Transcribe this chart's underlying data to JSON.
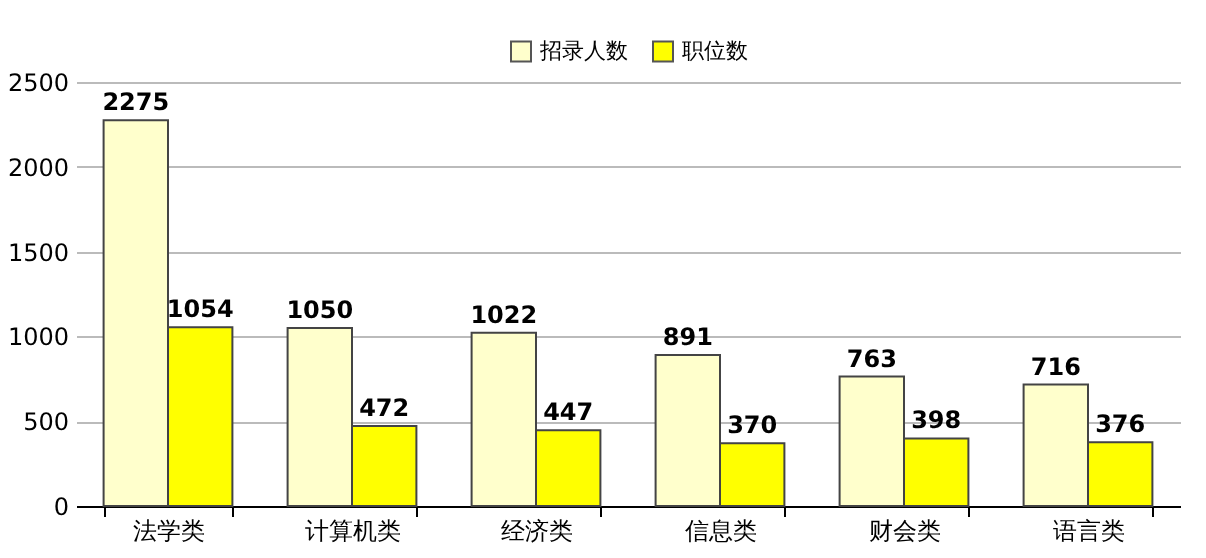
{
  "chart_data": {
    "type": "bar",
    "categories": [
      "法学类",
      "计算机类",
      "经济类",
      "信息类",
      "财会类",
      "语言类"
    ],
    "series": [
      {
        "name": "招录人数",
        "color": "#ffffcc",
        "values": [
          2275,
          1050,
          1022,
          891,
          763,
          716
        ]
      },
      {
        "name": "职位数",
        "color": "#ffff00",
        "values": [
          1054,
          472,
          447,
          370,
          398,
          376
        ]
      }
    ],
    "ylim": [
      0,
      2500
    ],
    "yticks": [
      0,
      500,
      1000,
      1500,
      2000,
      2500
    ],
    "grid": "y",
    "legend": "top",
    "data_labels": true
  }
}
